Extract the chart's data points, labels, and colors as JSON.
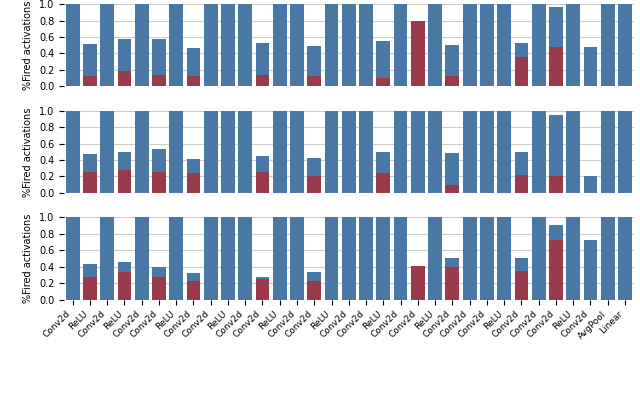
{
  "labels": [
    "Conv2d",
    "ReLU",
    "Conv2d",
    "ReLU",
    "Conv2d",
    "Conv2d",
    "ReLU",
    "Conv2d",
    "Conv2d",
    "ReLU",
    "Conv2d",
    "Conv2d",
    "ReLU",
    "Conv2d",
    "Conv2d",
    "ReLU",
    "Conv2d",
    "Conv2d",
    "ReLU",
    "Conv2d",
    "Conv2d",
    "ReLU",
    "Conv2d",
    "Conv2d",
    "Conv2d",
    "ReLU",
    "Conv2d",
    "Conv2d",
    "Conv2d",
    "ReLU",
    "Conv2d",
    "AvgPool",
    "Linear"
  ],
  "subplot1_blue": [
    1.0,
    0.51,
    1.0,
    0.58,
    1.0,
    0.57,
    1.0,
    0.47,
    1.0,
    1.0,
    1.0,
    0.53,
    1.0,
    1.0,
    0.49,
    1.0,
    1.0,
    1.0,
    0.55,
    1.0,
    0.8,
    1.0,
    0.5,
    1.0,
    1.0,
    1.0,
    0.53,
    1.0,
    0.97,
    1.0,
    0.48,
    1.0,
    1.0
  ],
  "subplot1_red": [
    0.0,
    0.12,
    0.0,
    0.18,
    0.0,
    0.14,
    0.0,
    0.12,
    0.0,
    0.0,
    0.0,
    0.14,
    0.0,
    0.0,
    0.12,
    0.0,
    0.0,
    0.0,
    0.1,
    0.0,
    0.8,
    0.0,
    0.12,
    0.0,
    0.0,
    0.0,
    0.36,
    0.0,
    0.48,
    0.0,
    0.0,
    0.0,
    0.0
  ],
  "subplot2_blue": [
    1.0,
    0.47,
    1.0,
    0.5,
    1.0,
    0.53,
    1.0,
    0.41,
    1.0,
    1.0,
    1.0,
    0.45,
    1.0,
    1.0,
    0.43,
    1.0,
    1.0,
    1.0,
    0.5,
    1.0,
    1.0,
    1.0,
    0.48,
    1.0,
    1.0,
    1.0,
    0.5,
    1.0,
    0.95,
    1.0,
    0.2,
    1.0,
    1.0
  ],
  "subplot2_red": [
    0.0,
    0.25,
    0.0,
    0.28,
    0.0,
    0.26,
    0.0,
    0.24,
    0.0,
    0.0,
    0.0,
    0.25,
    0.0,
    0.0,
    0.21,
    0.0,
    0.0,
    0.0,
    0.24,
    0.0,
    0.0,
    0.0,
    0.1,
    0.0,
    0.0,
    0.0,
    0.22,
    0.0,
    0.2,
    0.0,
    0.0,
    0.0,
    0.0
  ],
  "subplot3_blue": [
    1.0,
    0.43,
    1.0,
    0.46,
    1.0,
    0.4,
    1.0,
    0.32,
    1.0,
    1.0,
    1.0,
    0.28,
    1.0,
    1.0,
    0.34,
    1.0,
    1.0,
    1.0,
    1.0,
    1.0,
    0.41,
    1.0,
    0.5,
    1.0,
    1.0,
    1.0,
    0.5,
    1.0,
    0.91,
    1.0,
    0.72,
    1.0,
    1.0
  ],
  "subplot3_red": [
    0.0,
    0.28,
    0.0,
    0.34,
    0.0,
    0.28,
    0.0,
    0.22,
    0.0,
    0.0,
    0.0,
    0.25,
    0.0,
    0.0,
    0.22,
    0.0,
    0.0,
    0.0,
    0.0,
    0.0,
    0.41,
    0.0,
    0.4,
    0.0,
    0.0,
    0.0,
    0.35,
    0.0,
    0.72,
    0.0,
    0.0,
    0.0,
    0.0
  ],
  "blue_color": "#4878a3",
  "red_color": "#9b3a4a",
  "ylabel": "%Fired activations",
  "ylim": [
    0.0,
    1.0
  ],
  "yticks": [
    0.0,
    0.2,
    0.4,
    0.6,
    0.8,
    1.0
  ],
  "bg_color": "#ffffff",
  "grid_color": "#cccccc",
  "bar_width": 0.8,
  "label_fontsize": 6.5,
  "ylabel_fontsize": 7,
  "tick_fontsize": 7
}
